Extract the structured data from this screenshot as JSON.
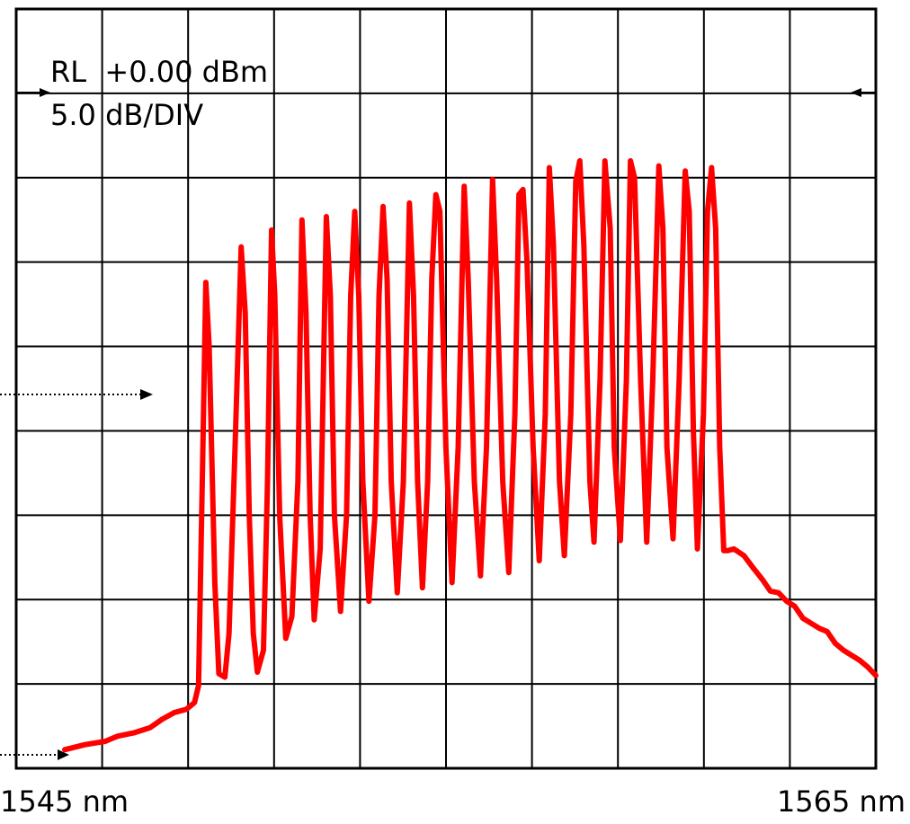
{
  "chart_data": {
    "type": "line",
    "title": "",
    "reference_level": "RL  +0.00 dBm",
    "scale": "5.0 dB/DIV",
    "x_start_label": "1545 nm",
    "x_end_label": "1565 nm",
    "xlim": [
      1545,
      1565
    ],
    "ylim": [
      -45,
      0
    ],
    "y_units": "dBm",
    "x_units": "nm",
    "grid": true,
    "divisions": {
      "x": 10,
      "y": 9
    },
    "colors": {
      "trace": "#ff0000",
      "grid": "#000000",
      "frame": "#000000"
    },
    "reference_level_dbm": 0,
    "marker_level_dbm": -23.5,
    "floor_marker_level_dbm": -43.5,
    "series": [
      {
        "values": [
          [
            1545.0,
            -43.9
          ],
          [
            1545.5,
            -43.6
          ],
          [
            1546.0,
            -43.4
          ],
          [
            1546.3,
            -43.1
          ],
          [
            1546.7,
            -42.9
          ],
          [
            1547.1,
            -42.6
          ],
          [
            1547.4,
            -42.1
          ],
          [
            1547.7,
            -41.7
          ],
          [
            1548.0,
            -41.5
          ],
          [
            1548.2,
            -41.1
          ],
          [
            1548.3,
            -40.1
          ],
          [
            1548.4,
            -27.0
          ],
          [
            1548.48,
            -16.2
          ],
          [
            1548.56,
            -20.0
          ],
          [
            1548.7,
            -34.0
          ],
          [
            1548.8,
            -39.4
          ],
          [
            1548.95,
            -39.6
          ],
          [
            1549.05,
            -37.0
          ],
          [
            1549.2,
            -26.0
          ],
          [
            1549.35,
            -14.1
          ],
          [
            1549.45,
            -18.0
          ],
          [
            1549.55,
            -30.0
          ],
          [
            1549.65,
            -37.0
          ],
          [
            1549.75,
            -39.3
          ],
          [
            1549.9,
            -38.0
          ],
          [
            1550.0,
            -28.0
          ],
          [
            1550.1,
            -13.1
          ],
          [
            1550.18,
            -17.0
          ],
          [
            1550.3,
            -30.0
          ],
          [
            1550.45,
            -37.3
          ],
          [
            1550.6,
            -36.0
          ],
          [
            1550.75,
            -28.0
          ],
          [
            1550.85,
            -12.5
          ],
          [
            1550.95,
            -18.0
          ],
          [
            1551.05,
            -30.0
          ],
          [
            1551.15,
            -36.2
          ],
          [
            1551.3,
            -32.0
          ],
          [
            1551.45,
            -12.3
          ],
          [
            1551.55,
            -17.0
          ],
          [
            1551.65,
            -30.0
          ],
          [
            1551.8,
            -35.7
          ],
          [
            1551.95,
            -30.0
          ],
          [
            1552.05,
            -17.0
          ],
          [
            1552.15,
            -12.0
          ],
          [
            1552.25,
            -17.0
          ],
          [
            1552.35,
            -28.0
          ],
          [
            1552.5,
            -35.1
          ],
          [
            1552.65,
            -30.0
          ],
          [
            1552.75,
            -17.0
          ],
          [
            1552.85,
            -11.7
          ],
          [
            1552.95,
            -16.0
          ],
          [
            1553.05,
            -28.0
          ],
          [
            1553.2,
            -34.6
          ],
          [
            1553.35,
            -28.0
          ],
          [
            1553.5,
            -11.5
          ],
          [
            1553.6,
            -17.0
          ],
          [
            1553.7,
            -28.0
          ],
          [
            1553.82,
            -34.3
          ],
          [
            1553.95,
            -28.0
          ],
          [
            1554.05,
            -16.0
          ],
          [
            1554.15,
            -11.0
          ],
          [
            1554.25,
            -12.0
          ],
          [
            1554.4,
            -26.0
          ],
          [
            1554.55,
            -34.0
          ],
          [
            1554.7,
            -26.0
          ],
          [
            1554.85,
            -10.5
          ],
          [
            1554.95,
            -16.0
          ],
          [
            1555.1,
            -28.0
          ],
          [
            1555.25,
            -33.6
          ],
          [
            1555.4,
            -26.0
          ],
          [
            1555.55,
            -10.1
          ],
          [
            1555.65,
            -16.0
          ],
          [
            1555.8,
            -28.0
          ],
          [
            1555.95,
            -33.4
          ],
          [
            1556.1,
            -24.0
          ],
          [
            1556.2,
            -11.0
          ],
          [
            1556.3,
            -10.7
          ],
          [
            1556.4,
            -15.0
          ],
          [
            1556.55,
            -26.0
          ],
          [
            1556.7,
            -32.7
          ],
          [
            1556.85,
            -24.0
          ],
          [
            1556.95,
            -9.4
          ],
          [
            1557.05,
            -14.0
          ],
          [
            1557.2,
            -28.0
          ],
          [
            1557.32,
            -32.4
          ],
          [
            1557.48,
            -24.0
          ],
          [
            1557.6,
            -10.2
          ],
          [
            1557.7,
            -9.0
          ],
          [
            1557.8,
            -14.0
          ],
          [
            1557.95,
            -28.0
          ],
          [
            1558.05,
            -31.6
          ],
          [
            1558.2,
            -22.0
          ],
          [
            1558.32,
            -9.0
          ],
          [
            1558.45,
            -13.0
          ],
          [
            1558.55,
            -26.0
          ],
          [
            1558.7,
            -31.5
          ],
          [
            1558.85,
            -22.0
          ],
          [
            1558.95,
            -9.0
          ],
          [
            1559.05,
            -10.0
          ],
          [
            1559.2,
            -22.0
          ],
          [
            1559.35,
            -31.6
          ],
          [
            1559.5,
            -22.0
          ],
          [
            1559.65,
            -9.3
          ],
          [
            1559.75,
            -13.0
          ],
          [
            1559.85,
            -26.0
          ],
          [
            1560.0,
            -31.4
          ],
          [
            1560.15,
            -22.0
          ],
          [
            1560.3,
            -9.6
          ],
          [
            1560.4,
            -12.0
          ],
          [
            1560.5,
            -25.0
          ],
          [
            1560.6,
            -32.0
          ],
          [
            1560.75,
            -24.0
          ],
          [
            1560.85,
            -12.0
          ],
          [
            1560.95,
            -9.4
          ],
          [
            1561.05,
            -13.0
          ],
          [
            1561.15,
            -26.0
          ],
          [
            1561.25,
            -32.1
          ],
          [
            1561.35,
            -32.1
          ],
          [
            1561.5,
            -32.0
          ],
          [
            1561.75,
            -32.4
          ],
          [
            1562.0,
            -33.2
          ],
          [
            1562.2,
            -33.8
          ],
          [
            1562.4,
            -34.5
          ],
          [
            1562.6,
            -34.6
          ],
          [
            1562.8,
            -35.1
          ],
          [
            1563.0,
            -35.4
          ],
          [
            1563.2,
            -36.1
          ],
          [
            1563.4,
            -36.4
          ],
          [
            1563.6,
            -36.7
          ],
          [
            1563.8,
            -36.9
          ],
          [
            1564.0,
            -37.6
          ],
          [
            1564.2,
            -38.0
          ],
          [
            1564.4,
            -38.3
          ],
          [
            1564.6,
            -38.6
          ],
          [
            1564.8,
            -39.0
          ],
          [
            1565.0,
            -39.5
          ]
        ]
      }
    ]
  }
}
